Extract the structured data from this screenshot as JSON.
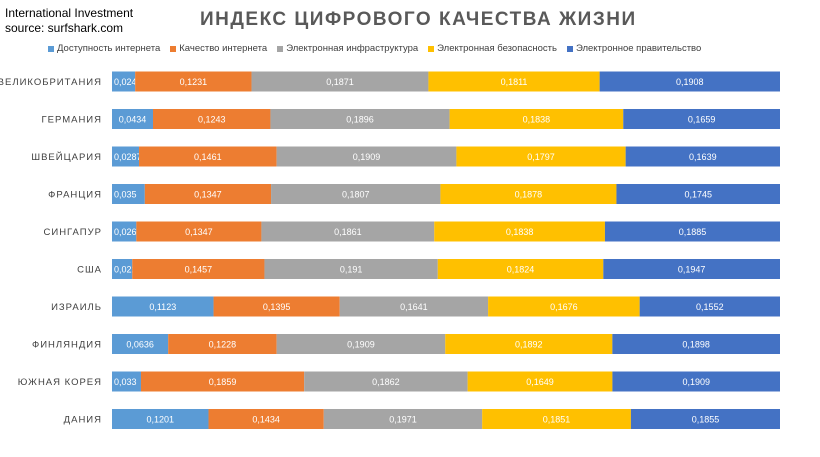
{
  "header": {
    "source_line1": "International Investment",
    "source_line2": "source: surfshark.com",
    "title": "ИНДЕКС ЦИФРОВОГО КАЧЕСТВА ЖИЗНИ"
  },
  "chart_data": {
    "type": "bar",
    "orientation": "horizontal",
    "stacked": true,
    "title": "ИНДЕКС ЦИФРОВОГО КАЧЕСТВА ЖИЗНИ",
    "legend_position": "top",
    "categories": [
      "ВЕЛИКОБРИТАНИЯ",
      "ГЕРМАНИЯ",
      "ШВЕЙЦАРИЯ",
      "ФРАНЦИЯ",
      "СИНГАПУР",
      "США",
      "ИЗРАИЛЬ",
      "ФИНЛЯНДИЯ",
      "ЮЖНАЯ КОРЕЯ",
      "ДАНИЯ"
    ],
    "series": [
      {
        "name": "Доступность интернета",
        "color": "#5B9BD5",
        "values": [
          0.0245,
          0.0434,
          0.0287,
          0.035,
          0.0262,
          0.0223,
          0.1123,
          0.0636,
          0.033,
          0.1201
        ],
        "labels": [
          "0,0245",
          "0,0434",
          "0,0287",
          "0,035",
          "0,0262",
          "0,0223",
          "0,1123",
          "0,0636",
          "0,033",
          "0,1201"
        ]
      },
      {
        "name": "Качество интернета",
        "color": "#ED7D31",
        "values": [
          0.1231,
          0.1243,
          0.1461,
          0.1347,
          0.1347,
          0.1457,
          0.1395,
          0.1228,
          0.1859,
          0.1434
        ],
        "labels": [
          "0,1231",
          "0,1243",
          "0,1461",
          "0,1347",
          "0,1347",
          "0,1457",
          "0,1395",
          "0,1228",
          "0,1859",
          "0,1434"
        ]
      },
      {
        "name": "Электронная инфраструктура",
        "color": "#A5A5A5",
        "values": [
          0.1871,
          0.1896,
          0.1909,
          0.1807,
          0.1861,
          0.191,
          0.1641,
          0.1909,
          0.1862,
          0.1971
        ],
        "labels": [
          "0,1871",
          "0,1896",
          "0,1909",
          "0,1807",
          "0,1861",
          "0,191",
          "0,1641",
          "0,1909",
          "0,1862",
          "0,1971"
        ]
      },
      {
        "name": "Электронная безопасность",
        "color": "#FFC000",
        "values": [
          0.1811,
          0.1838,
          0.1797,
          0.1878,
          0.1838,
          0.1824,
          0.1676,
          0.1892,
          0.1649,
          0.1851
        ],
        "labels": [
          "0,1811",
          "0,1838",
          "0,1797",
          "0,1878",
          "0,1838",
          "0,1824",
          "0,1676",
          "0,1892",
          "0,1649",
          "0,1851"
        ]
      },
      {
        "name": "Электронное правительство",
        "color": "#4472C4",
        "values": [
          0.1908,
          0.1659,
          0.1639,
          0.1745,
          0.1885,
          0.1947,
          0.1552,
          0.1898,
          0.1909,
          0.1855
        ],
        "labels": [
          "0,1908",
          "0,1659",
          "0,1639",
          "0,1745",
          "0,1885",
          "0,1947",
          "0,1552",
          "0,1898",
          "0,1909",
          "0,1855"
        ]
      }
    ]
  }
}
